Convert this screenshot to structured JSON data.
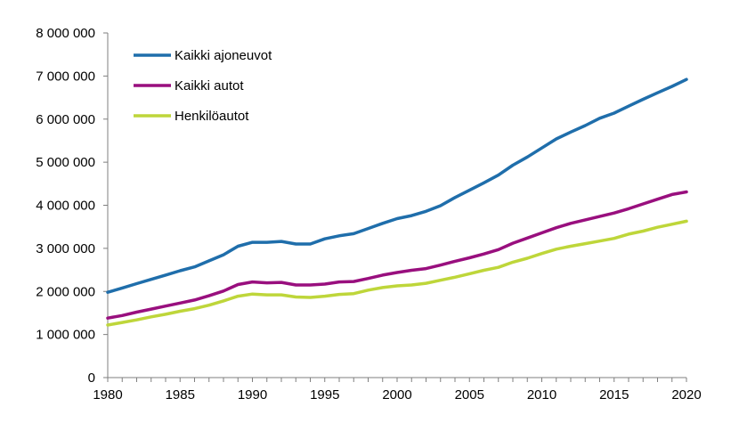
{
  "chart_data": {
    "type": "line",
    "title": "",
    "xlabel": "",
    "ylabel": "",
    "xlim": [
      1980,
      2020
    ],
    "ylim": [
      0,
      8000000
    ],
    "x_ticks": [
      1980,
      1985,
      1990,
      1995,
      2000,
      2005,
      2010,
      2015,
      2020
    ],
    "x_tick_labels": [
      "1980",
      "1985",
      "1990",
      "1995",
      "2000",
      "2005",
      "2010",
      "2015",
      "2020"
    ],
    "y_ticks": [
      0,
      1000000,
      2000000,
      3000000,
      4000000,
      5000000,
      6000000,
      7000000,
      8000000
    ],
    "y_tick_labels": [
      "0",
      "1 000 000",
      "2 000 000",
      "3 000 000",
      "4 000 000",
      "5 000 000",
      "6 000 000",
      "7 000 000",
      "8 000 000"
    ],
    "grid": false,
    "legend_position": "top-left",
    "x": [
      1980,
      1981,
      1982,
      1983,
      1984,
      1985,
      1986,
      1987,
      1988,
      1989,
      1990,
      1991,
      1992,
      1993,
      1994,
      1995,
      1996,
      1997,
      1998,
      1999,
      2000,
      2001,
      2002,
      2003,
      2004,
      2005,
      2006,
      2007,
      2008,
      2009,
      2010,
      2011,
      2012,
      2013,
      2014,
      2015,
      2016,
      2017,
      2018,
      2019,
      2020
    ],
    "series": [
      {
        "name": "Kaikki ajoneuvot",
        "color": "#1f6eab",
        "values": [
          1980000,
          2080000,
          2180000,
          2280000,
          2380000,
          2480000,
          2570000,
          2710000,
          2850000,
          3050000,
          3140000,
          3140000,
          3160000,
          3100000,
          3100000,
          3220000,
          3290000,
          3340000,
          3460000,
          3580000,
          3690000,
          3760000,
          3860000,
          3990000,
          4180000,
          4350000,
          4520000,
          4700000,
          4930000,
          5120000,
          5330000,
          5540000,
          5700000,
          5850000,
          6020000,
          6140000,
          6300000,
          6460000,
          6610000,
          6760000,
          6920000
        ]
      },
      {
        "name": "Kaikki autot",
        "color": "#990f7e",
        "values": [
          1380000,
          1440000,
          1520000,
          1590000,
          1660000,
          1730000,
          1800000,
          1900000,
          2010000,
          2160000,
          2220000,
          2200000,
          2210000,
          2150000,
          2150000,
          2170000,
          2220000,
          2230000,
          2300000,
          2380000,
          2440000,
          2490000,
          2530000,
          2610000,
          2700000,
          2780000,
          2870000,
          2970000,
          3120000,
          3240000,
          3360000,
          3480000,
          3580000,
          3660000,
          3740000,
          3820000,
          3920000,
          4030000,
          4140000,
          4250000,
          4310000
        ]
      },
      {
        "name": "Henkilöautot",
        "color": "#bed63a",
        "values": [
          1220000,
          1280000,
          1340000,
          1410000,
          1470000,
          1540000,
          1600000,
          1680000,
          1780000,
          1890000,
          1940000,
          1920000,
          1920000,
          1870000,
          1860000,
          1890000,
          1930000,
          1950000,
          2030000,
          2090000,
          2130000,
          2150000,
          2190000,
          2260000,
          2330000,
          2410000,
          2490000,
          2560000,
          2680000,
          2770000,
          2880000,
          2980000,
          3050000,
          3110000,
          3170000,
          3230000,
          3330000,
          3400000,
          3490000,
          3560000,
          3630000
        ]
      }
    ]
  }
}
